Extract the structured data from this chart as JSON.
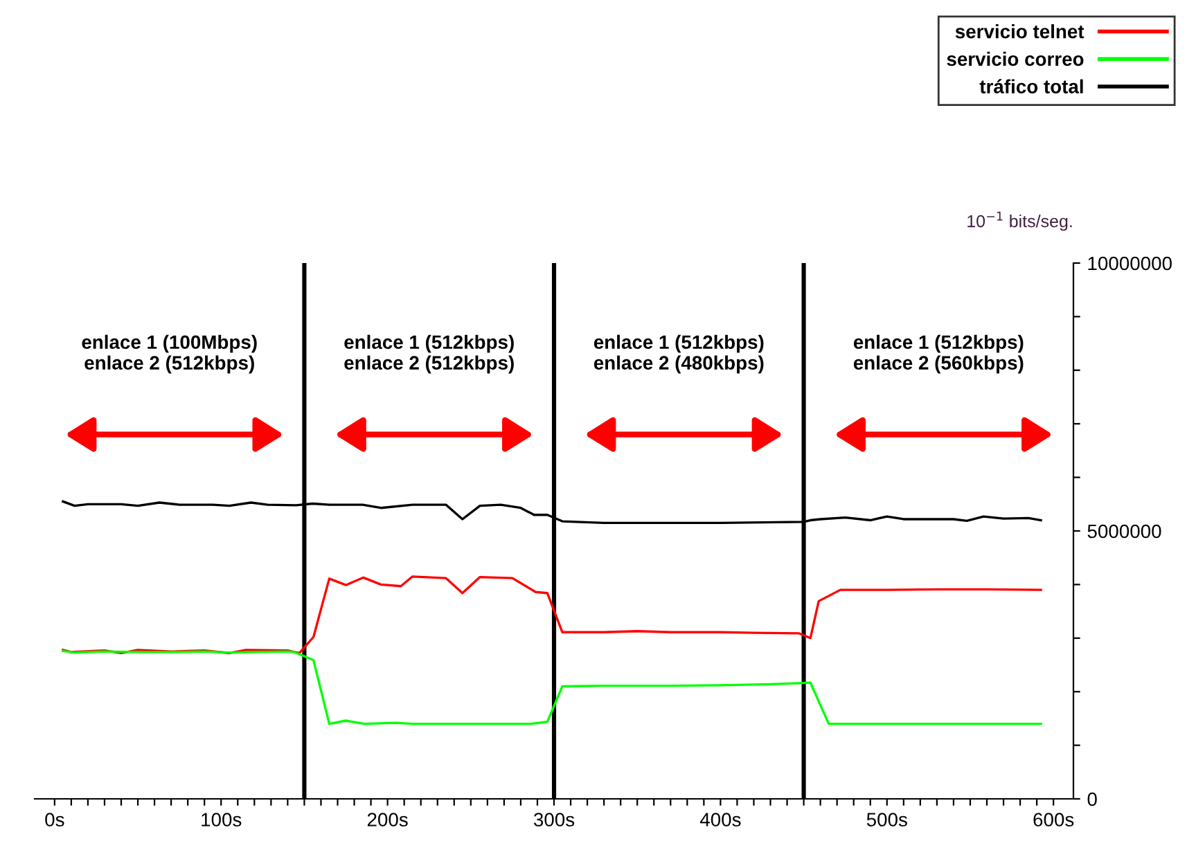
{
  "chart_data": {
    "type": "line",
    "ylabel": "10$^{−1}$ bits/seg.",
    "xlim": [
      -12,
      612
    ],
    "ylim": [
      0,
      10000000
    ],
    "xticks": [
      {
        "value": 0,
        "label": "0s"
      },
      {
        "value": 10,
        "label": null
      },
      {
        "value": 20,
        "label": null
      },
      {
        "value": 30,
        "label": null
      },
      {
        "value": 40,
        "label": null
      },
      {
        "value": 50,
        "label": null
      },
      {
        "value": 60,
        "label": null
      },
      {
        "value": 70,
        "label": null
      },
      {
        "value": 80,
        "label": null
      },
      {
        "value": 90,
        "label": null
      },
      {
        "value": 100,
        "label": "100s"
      },
      {
        "value": 110,
        "label": null
      },
      {
        "value": 120,
        "label": null
      },
      {
        "value": 130,
        "label": null
      },
      {
        "value": 140,
        "label": null
      },
      {
        "value": 150,
        "label": null
      },
      {
        "value": 160,
        "label": null
      },
      {
        "value": 170,
        "label": null
      },
      {
        "value": 180,
        "label": null
      },
      {
        "value": 190,
        "label": null
      },
      {
        "value": 200,
        "label": "200s"
      },
      {
        "value": 210,
        "label": null
      },
      {
        "value": 220,
        "label": null
      },
      {
        "value": 230,
        "label": null
      },
      {
        "value": 240,
        "label": null
      },
      {
        "value": 250,
        "label": null
      },
      {
        "value": 260,
        "label": null
      },
      {
        "value": 270,
        "label": null
      },
      {
        "value": 280,
        "label": null
      },
      {
        "value": 290,
        "label": null
      },
      {
        "value": 300,
        "label": "300s"
      },
      {
        "value": 310,
        "label": null
      },
      {
        "value": 320,
        "label": null
      },
      {
        "value": 330,
        "label": null
      },
      {
        "value": 340,
        "label": null
      },
      {
        "value": 350,
        "label": null
      },
      {
        "value": 360,
        "label": null
      },
      {
        "value": 370,
        "label": null
      },
      {
        "value": 380,
        "label": null
      },
      {
        "value": 390,
        "label": null
      },
      {
        "value": 400,
        "label": "400s"
      },
      {
        "value": 410,
        "label": null
      },
      {
        "value": 420,
        "label": null
      },
      {
        "value": 430,
        "label": null
      },
      {
        "value": 440,
        "label": null
      },
      {
        "value": 450,
        "label": null
      },
      {
        "value": 460,
        "label": null
      },
      {
        "value": 470,
        "label": null
      },
      {
        "value": 480,
        "label": null
      },
      {
        "value": 490,
        "label": null
      },
      {
        "value": 500,
        "label": "500s"
      },
      {
        "value": 510,
        "label": null
      },
      {
        "value": 520,
        "label": null
      },
      {
        "value": 530,
        "label": null
      },
      {
        "value": 540,
        "label": null
      },
      {
        "value": 550,
        "label": null
      },
      {
        "value": 560,
        "label": null
      },
      {
        "value": 570,
        "label": null
      },
      {
        "value": 580,
        "label": null
      },
      {
        "value": 590,
        "label": null
      },
      {
        "value": 600,
        "label": "600s"
      }
    ],
    "yticks": [
      0,
      {
        "value": 1000000,
        "label": null
      },
      {
        "value": 2000000,
        "label": null
      },
      {
        "value": 3000000,
        "label": null
      },
      {
        "value": 4000000,
        "label": null
      },
      5000000,
      {
        "value": 6000000,
        "label": null
      },
      {
        "value": 7000000,
        "label": null
      },
      {
        "value": 8000000,
        "label": null
      },
      {
        "value": 9000000,
        "label": null
      },
      10000000
    ],
    "grid": false,
    "legend": "top right",
    "series": [
      {
        "name": "servicio telnet",
        "color": "#ff0000",
        "x": [
          5,
          10,
          30,
          40,
          50,
          70,
          90,
          105,
          115,
          140,
          147,
          155.5,
          165,
          175,
          185.5,
          196,
          208,
          215,
          235,
          245,
          255.5,
          275,
          289,
          296,
          305,
          330,
          350,
          370,
          400,
          420,
          447,
          454,
          459,
          472,
          500,
          530,
          560,
          592.5
        ],
        "values": [
          2780000,
          2740000,
          2770000,
          2720000,
          2780000,
          2750000,
          2770000,
          2720000,
          2780000,
          2770000,
          2720000,
          3020000,
          4110000,
          3990000,
          4130000,
          4000000,
          3970000,
          4150000,
          4120000,
          3840000,
          4140000,
          4120000,
          3860000,
          3840000,
          3110000,
          3110000,
          3130000,
          3110000,
          3110000,
          3100000,
          3090000,
          3000000,
          3690000,
          3900000,
          3900000,
          3910000,
          3910000,
          3900000
        ]
      },
      {
        "name": "servicio correo",
        "color": "#00ff00",
        "x": [
          5,
          12,
          30,
          50,
          70,
          90,
          105,
          120,
          140,
          144,
          155.5,
          165,
          175,
          186,
          205,
          215,
          250,
          286,
          296,
          305,
          330,
          370,
          400,
          430,
          447,
          454,
          465,
          500,
          550,
          592.5
        ],
        "values": [
          2760000,
          2730000,
          2750000,
          2740000,
          2740000,
          2750000,
          2730000,
          2740000,
          2750000,
          2740000,
          2590000,
          1400000,
          1460000,
          1400000,
          1420000,
          1400000,
          1400000,
          1400000,
          1440000,
          2100000,
          2110000,
          2110000,
          2120000,
          2140000,
          2160000,
          2170000,
          1400000,
          1400000,
          1400000,
          1400000
        ]
      },
      {
        "name": "tráfico total",
        "color": "#000000",
        "x": [
          5,
          12,
          20,
          40,
          50,
          63,
          75,
          95,
          105,
          118,
          128,
          145,
          155,
          165,
          185,
          196,
          215,
          235,
          245,
          255.5,
          268,
          280,
          288,
          296,
          305,
          330,
          400,
          450,
          454,
          460,
          475,
          490,
          500,
          510,
          540,
          548,
          558,
          570,
          585,
          592.5
        ],
        "values": [
          5550000,
          5470000,
          5500000,
          5500000,
          5470000,
          5530000,
          5490000,
          5490000,
          5470000,
          5530000,
          5490000,
          5480000,
          5510000,
          5490000,
          5490000,
          5430000,
          5490000,
          5490000,
          5220000,
          5470000,
          5490000,
          5430000,
          5300000,
          5300000,
          5180000,
          5150000,
          5150000,
          5170000,
          5200000,
          5220000,
          5250000,
          5200000,
          5270000,
          5220000,
          5220000,
          5190000,
          5270000,
          5230000,
          5240000,
          5200000
        ]
      }
    ],
    "ref_lines": [
      {
        "axis": "x",
        "value": 150,
        "color": "#000000"
      },
      {
        "axis": "x",
        "value": 300,
        "color": "#000000"
      },
      {
        "axis": "x",
        "value": 450,
        "color": "#000000"
      }
    ],
    "annotations": [
      "enlace 1 (100Mbps)\nenlace 2 (512kbps)",
      "enlace 1 (512kbps)\nenlace 2 (512kbps)",
      "enlace 1 (512kbps)\nenlace 2 (480kbps)",
      "enlace 1 (512kbps)\nenlace 2 (560kbps)"
    ]
  }
}
